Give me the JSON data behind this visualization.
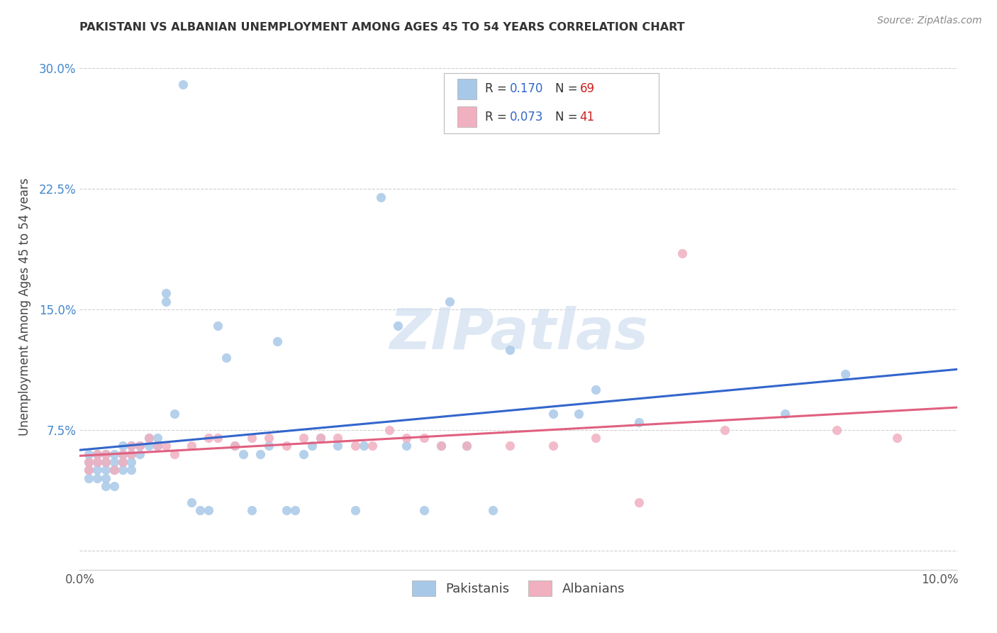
{
  "title": "PAKISTANI VS ALBANIAN UNEMPLOYMENT AMONG AGES 45 TO 54 YEARS CORRELATION CHART",
  "source": "Source: ZipAtlas.com",
  "ylabel": "Unemployment Among Ages 45 to 54 years",
  "xlim": [
    0.0,
    0.102
  ],
  "ylim": [
    -0.012,
    0.315
  ],
  "xticks": [
    0.0,
    0.02,
    0.04,
    0.06,
    0.08,
    0.1
  ],
  "xticklabels": [
    "0.0%",
    "",
    "",
    "",
    "",
    "10.0%"
  ],
  "yticks": [
    0.0,
    0.075,
    0.15,
    0.225,
    0.3
  ],
  "yticklabels": [
    "",
    "7.5%",
    "15.0%",
    "22.5%",
    "30.0%"
  ],
  "background_color": "#ffffff",
  "grid_color": "#d0d0d0",
  "watermark": "ZIPatlas",
  "legend_R1": "0.170",
  "legend_N1": "69",
  "legend_R2": "0.073",
  "legend_N2": "41",
  "pakistani_color": "#a8c8e8",
  "albanian_color": "#f0b0c0",
  "pakistani_line_color": "#3366cc",
  "albanian_line_color": "#e06080",
  "pak_x": [
    0.001,
    0.001,
    0.001,
    0.001,
    0.002,
    0.002,
    0.002,
    0.002,
    0.003,
    0.003,
    0.003,
    0.003,
    0.003,
    0.004,
    0.004,
    0.004,
    0.004,
    0.005,
    0.005,
    0.005,
    0.005,
    0.006,
    0.006,
    0.006,
    0.006,
    0.007,
    0.007,
    0.008,
    0.008,
    0.009,
    0.009,
    0.01,
    0.01,
    0.011,
    0.012,
    0.013,
    0.014,
    0.015,
    0.016,
    0.017,
    0.018,
    0.019,
    0.02,
    0.021,
    0.022,
    0.023,
    0.024,
    0.025,
    0.026,
    0.027,
    0.028,
    0.03,
    0.032,
    0.033,
    0.035,
    0.037,
    0.038,
    0.04,
    0.042,
    0.043,
    0.045,
    0.048,
    0.05,
    0.055,
    0.058,
    0.06,
    0.065,
    0.082,
    0.089
  ],
  "pak_y": [
    0.055,
    0.06,
    0.045,
    0.05,
    0.06,
    0.055,
    0.05,
    0.045,
    0.06,
    0.055,
    0.05,
    0.045,
    0.04,
    0.06,
    0.055,
    0.05,
    0.04,
    0.065,
    0.06,
    0.055,
    0.05,
    0.065,
    0.06,
    0.055,
    0.05,
    0.065,
    0.06,
    0.07,
    0.065,
    0.07,
    0.065,
    0.16,
    0.155,
    0.085,
    0.29,
    0.03,
    0.025,
    0.025,
    0.14,
    0.12,
    0.065,
    0.06,
    0.025,
    0.06,
    0.065,
    0.13,
    0.025,
    0.025,
    0.06,
    0.065,
    0.07,
    0.065,
    0.025,
    0.065,
    0.22,
    0.14,
    0.065,
    0.025,
    0.065,
    0.155,
    0.065,
    0.025,
    0.125,
    0.085,
    0.085,
    0.1,
    0.08,
    0.085,
    0.11
  ],
  "alb_x": [
    0.001,
    0.001,
    0.002,
    0.002,
    0.003,
    0.003,
    0.004,
    0.005,
    0.005,
    0.006,
    0.006,
    0.007,
    0.008,
    0.009,
    0.01,
    0.011,
    0.013,
    0.015,
    0.016,
    0.018,
    0.02,
    0.022,
    0.024,
    0.026,
    0.028,
    0.03,
    0.032,
    0.034,
    0.036,
    0.038,
    0.04,
    0.042,
    0.045,
    0.05,
    0.055,
    0.06,
    0.065,
    0.07,
    0.075,
    0.088,
    0.095
  ],
  "alb_y": [
    0.055,
    0.05,
    0.06,
    0.055,
    0.06,
    0.055,
    0.05,
    0.06,
    0.055,
    0.065,
    0.06,
    0.065,
    0.07,
    0.065,
    0.065,
    0.06,
    0.065,
    0.07,
    0.07,
    0.065,
    0.07,
    0.07,
    0.065,
    0.07,
    0.07,
    0.07,
    0.065,
    0.065,
    0.075,
    0.07,
    0.07,
    0.065,
    0.065,
    0.065,
    0.065,
    0.07,
    0.03,
    0.185,
    0.075,
    0.075,
    0.07
  ]
}
